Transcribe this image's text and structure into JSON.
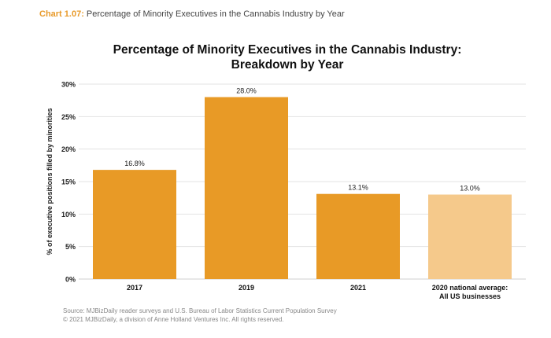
{
  "caption": {
    "number": "Chart 1.07:",
    "text": " Percentage of Minority Executives in the Cannabis Industry by Year"
  },
  "footer": {
    "source": "Source: MJBizDaily reader surveys and U.S. Bureau of Labor Statistics Current Population Survey",
    "copyright": "© 2021 MJBizDaily, a division of Anne Holland Ventures Inc. All rights reserved."
  },
  "colors": {
    "bar": "#e89a26",
    "bar_light": "#f5c98b",
    "grid": "#e3e3e3",
    "caption_accent": "#e89a2a"
  },
  "chart_data": {
    "type": "bar",
    "title_line1": "Percentage of Minority Executives in the Cannabis Industry:",
    "title_line2": "Breakdown by Year",
    "ylabel": "% of executive positions filled by minorities",
    "xlabel": "",
    "ylim": [
      0,
      30
    ],
    "yticks": [
      0,
      5,
      10,
      15,
      20,
      25,
      30
    ],
    "ytick_labels": [
      "0%",
      "5%",
      "10%",
      "15%",
      "20%",
      "25%",
      "30%"
    ],
    "grid": true,
    "categories": [
      [
        "2017"
      ],
      [
        "2019"
      ],
      [
        "2021"
      ],
      [
        "2020 national average:",
        "All US businesses"
      ]
    ],
    "values": [
      16.8,
      28.0,
      13.1,
      13.0
    ],
    "data_labels": [
      "16.8%",
      "28.0%",
      "13.1%",
      "13.0%"
    ],
    "highlight": [
      false,
      false,
      false,
      true
    ]
  }
}
